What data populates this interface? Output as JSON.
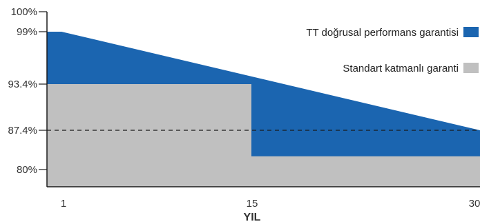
{
  "chart_data": {
    "type": "area",
    "xlabel": "YIL",
    "ylabel": "",
    "xlim": [
      1,
      30
    ],
    "ylim": [
      75,
      100
    ],
    "x_ticks": [
      {
        "value": 1,
        "label": "1"
      },
      {
        "value": 15,
        "label": "15"
      },
      {
        "value": 30,
        "label": "30"
      }
    ],
    "y_ticks": [
      {
        "value": 100,
        "label": "100%"
      },
      {
        "value": 99,
        "label": "99%"
      },
      {
        "value": 93.4,
        "label": "93.4%"
      },
      {
        "value": 87.4,
        "label": "87.4%"
      },
      {
        "value": 80,
        "label": "80%"
      }
    ],
    "reference_line": {
      "value": 87.4,
      "style": "dashed"
    },
    "series": [
      {
        "name": "TT doğrusal performans garantisi",
        "color": "#1b65b0",
        "points": [
          [
            1,
            99
          ],
          [
            2,
            99
          ],
          [
            30,
            87.4
          ]
        ]
      },
      {
        "name": "Standart katmanlı garanti",
        "color": "#c0c0c0",
        "points": [
          [
            1,
            93.4
          ],
          [
            15,
            93.4
          ],
          [
            15,
            82.5
          ],
          [
            30,
            82.5
          ]
        ]
      }
    ],
    "legend": {
      "placement": "top-right"
    }
  }
}
